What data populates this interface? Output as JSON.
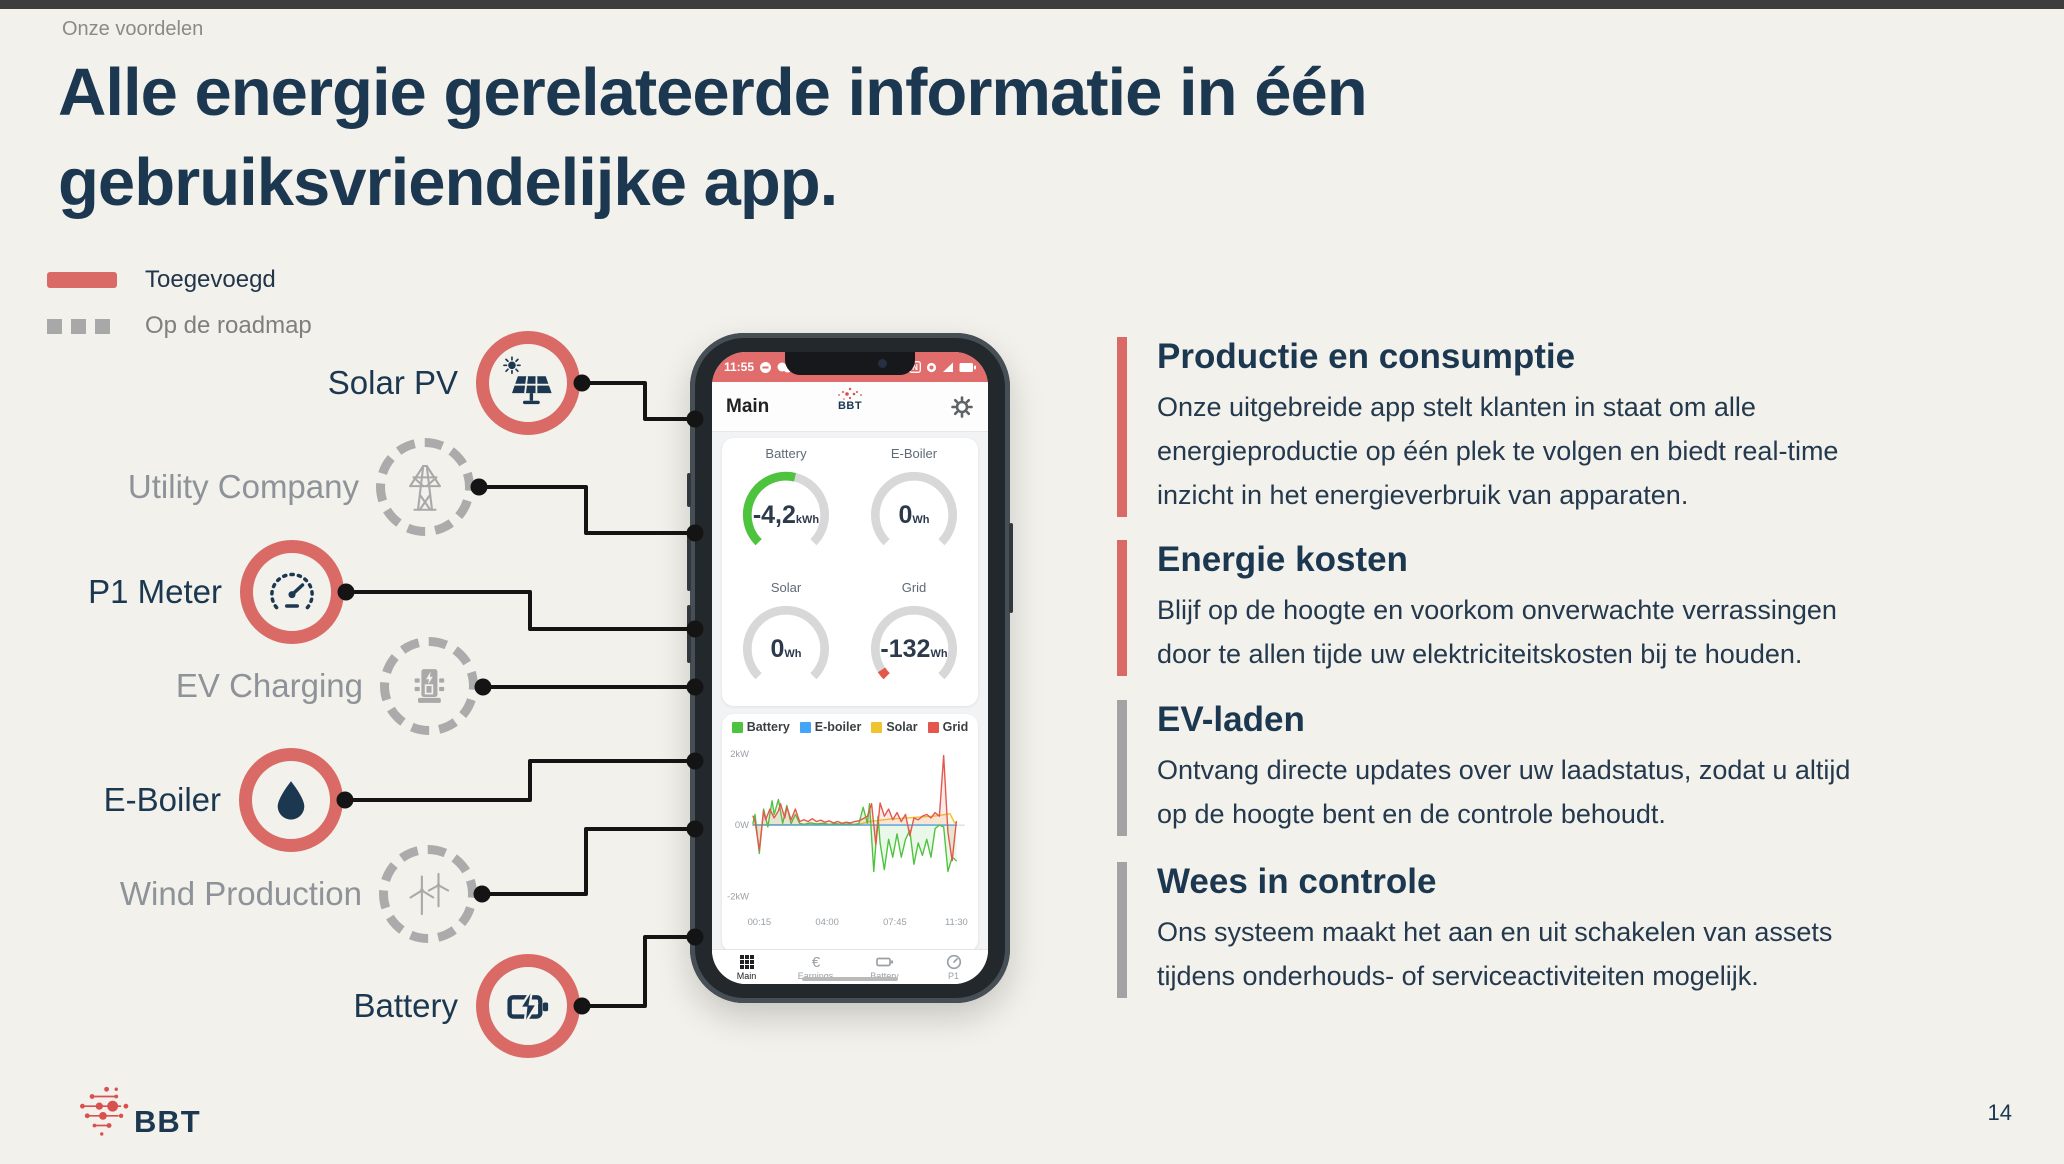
{
  "page": {
    "eyebrow": "Onze voordelen",
    "title_line1": "Alle energie gerelateerde informatie in één",
    "title_line2": "gebruiksvriendelijke app.",
    "page_number": "14"
  },
  "legend": {
    "added_label": "Toegevoegd",
    "roadmap_label": "Op de roadmap",
    "added_color": "#d96a66",
    "roadmap_color": "#a8a8a8"
  },
  "assets": [
    {
      "label": "Solar PV",
      "status": "added",
      "icon": "solar-panel-icon"
    },
    {
      "label": "Utility Company",
      "status": "roadmap",
      "icon": "transmission-tower-icon"
    },
    {
      "label": "P1 Meter",
      "status": "added",
      "icon": "meter-gauge-icon"
    },
    {
      "label": "EV Charging",
      "status": "roadmap",
      "icon": "ev-charger-icon"
    },
    {
      "label": "E-Boiler",
      "status": "added",
      "icon": "water-drop-icon"
    },
    {
      "label": "Wind Production",
      "status": "roadmap",
      "icon": "wind-turbine-icon"
    },
    {
      "label": "Battery",
      "status": "added",
      "icon": "battery-bolt-icon"
    }
  ],
  "phone": {
    "status": {
      "time": "11:55"
    },
    "header": {
      "title": "Main",
      "brand": "BBT"
    },
    "gauges": [
      {
        "label": "Battery",
        "value": "-4,2",
        "unit": "kWh",
        "arc_color": "#4ec43e",
        "arc_pct": 0.55
      },
      {
        "label": "E-Boiler",
        "value": "0",
        "unit": "Wh",
        "arc_color": null,
        "arc_pct": 0
      },
      {
        "label": "Solar",
        "value": "0",
        "unit": "Wh",
        "arc_color": null,
        "arc_pct": 0
      },
      {
        "label": "Grid",
        "value": "-132",
        "unit": "Wh",
        "arc_color": "#e4574d",
        "arc_pct": 0.045
      }
    ],
    "nav": [
      {
        "label": "Main",
        "icon": "grid-icon",
        "active": true
      },
      {
        "label": "Earnings",
        "icon": "euro-icon",
        "active": false
      },
      {
        "label": "Battery",
        "icon": "battery-icon",
        "active": false
      },
      {
        "label": "P1",
        "icon": "meter-icon",
        "active": false
      }
    ]
  },
  "chart_data": {
    "type": "line",
    "title": "",
    "xlabel": "",
    "ylabel": "",
    "ylim": [
      -2,
      2
    ],
    "grid": "zero-line-only",
    "legend_position": "top",
    "y_ticks": [
      {
        "label": "2kW",
        "kw": 2
      },
      {
        "label": "0W",
        "kw": 0
      },
      {
        "label": "-2kW",
        "kw": -2
      }
    ],
    "x_ticks": [
      {
        "label": "00:15",
        "t": 3
      },
      {
        "label": "04:00",
        "t": 35
      },
      {
        "label": "07:45",
        "t": 67
      },
      {
        "label": "11:30",
        "t": 96
      }
    ],
    "series": [
      {
        "name": "Battery",
        "color": "#4ec43e",
        "points": [
          [
            0,
            0.05
          ],
          [
            1,
            0.3
          ],
          [
            3,
            -0.8
          ],
          [
            5,
            0.45
          ],
          [
            7,
            -0.05
          ],
          [
            9,
            0.68
          ],
          [
            10,
            0.3
          ],
          [
            12,
            0.72
          ],
          [
            14,
            0.05
          ],
          [
            16,
            0.55
          ],
          [
            18,
            0.04
          ],
          [
            20,
            0.3
          ],
          [
            22,
            0.05
          ],
          [
            24,
            0.02
          ],
          [
            27,
            0.06
          ],
          [
            30,
            0.03
          ],
          [
            33,
            0.05
          ],
          [
            36,
            0.02
          ],
          [
            39,
            0.04
          ],
          [
            42,
            0.02
          ],
          [
            45,
            0.03
          ],
          [
            48,
            0.02
          ],
          [
            50,
            0.04
          ],
          [
            52,
            0.5
          ],
          [
            54,
            0.05
          ],
          [
            55,
            0.6
          ],
          [
            57,
            -1.3
          ],
          [
            59,
            0.25
          ],
          [
            60,
            -0.5
          ],
          [
            62,
            -1.25
          ],
          [
            64,
            -0.4
          ],
          [
            66,
            -0.9
          ],
          [
            68,
            -0.25
          ],
          [
            70,
            -0.9
          ],
          [
            72,
            -0.4
          ],
          [
            74,
            -0.15
          ],
          [
            76,
            -1.1
          ],
          [
            78,
            -0.5
          ],
          [
            80,
            -0.85
          ],
          [
            82,
            -0.4
          ],
          [
            84,
            -0.9
          ],
          [
            86,
            -0.1
          ],
          [
            88,
            0.0
          ],
          [
            90,
            -0.05
          ],
          [
            92,
            -1.3
          ],
          [
            94,
            -0.9
          ],
          [
            96,
            -1.0
          ]
        ]
      },
      {
        "name": "E-boiler",
        "color": "#42a5f5",
        "points": [
          [
            0,
            0.0
          ],
          [
            96,
            0.0
          ]
        ]
      },
      {
        "name": "Solar",
        "color": "#f0c330",
        "points": [
          [
            0,
            0.01
          ],
          [
            20,
            0.01
          ],
          [
            40,
            0.01
          ],
          [
            50,
            0.02
          ],
          [
            55,
            0.1
          ],
          [
            60,
            0.14
          ],
          [
            65,
            0.17
          ],
          [
            70,
            0.19
          ],
          [
            75,
            0.21
          ],
          [
            80,
            0.23
          ],
          [
            85,
            0.25
          ],
          [
            88,
            0.27
          ],
          [
            91,
            0.3
          ],
          [
            93,
            0.32
          ],
          [
            95,
            0.08
          ],
          [
            96,
            0.02
          ]
        ]
      },
      {
        "name": "Grid",
        "color": "#e4574d",
        "points": [
          [
            0,
            0.25
          ],
          [
            1,
            0.1
          ],
          [
            3,
            -0.7
          ],
          [
            5,
            0.4
          ],
          [
            6,
            0.15
          ],
          [
            8,
            0.45
          ],
          [
            10,
            0.2
          ],
          [
            12,
            0.4
          ],
          [
            13,
            0.6
          ],
          [
            15,
            0.2
          ],
          [
            16,
            0.5
          ],
          [
            18,
            0.15
          ],
          [
            20,
            0.45
          ],
          [
            22,
            0.1
          ],
          [
            24,
            0.15
          ],
          [
            26,
            0.1
          ],
          [
            28,
            0.18
          ],
          [
            30,
            0.1
          ],
          [
            32,
            0.14
          ],
          [
            34,
            0.08
          ],
          [
            36,
            0.12
          ],
          [
            38,
            0.06
          ],
          [
            40,
            0.1
          ],
          [
            42,
            0.05
          ],
          [
            44,
            0.08
          ],
          [
            46,
            0.06
          ],
          [
            48,
            0.1
          ],
          [
            50,
            0.12
          ],
          [
            52,
            0.18
          ],
          [
            54,
            0.25
          ],
          [
            56,
            0.6
          ],
          [
            58,
            -0.55
          ],
          [
            60,
            0.62
          ],
          [
            62,
            0.25
          ],
          [
            64,
            0.45
          ],
          [
            66,
            0.15
          ],
          [
            68,
            0.35
          ],
          [
            70,
            0.1
          ],
          [
            72,
            0.3
          ],
          [
            74,
            -0.3
          ],
          [
            76,
            0.2
          ],
          [
            78,
            0.15
          ],
          [
            80,
            0.25
          ],
          [
            82,
            0.3
          ],
          [
            84,
            0.2
          ],
          [
            86,
            0.35
          ],
          [
            88,
            0.25
          ],
          [
            90,
            1.95
          ],
          [
            92,
            -0.2
          ],
          [
            94,
            -1.0
          ],
          [
            96,
            0.1
          ]
        ]
      }
    ]
  },
  "sections": [
    {
      "status": "added",
      "title": "Productie en consumptie",
      "body": "Onze uitgebreide app stelt klanten in staat om alle\nenergieproductie op één plek te volgen en biedt real-time\ninzicht in het energieverbruik van apparaten."
    },
    {
      "status": "added",
      "title": "Energie kosten",
      "body": "Blijf op de hoogte en voorkom onverwachte verrassingen\ndoor te allen tijde uw elektriciteitskosten bij te houden."
    },
    {
      "status": "roadmap",
      "title": "EV-laden",
      "body": "Ontvang directe updates over uw laadstatus, zodat u altijd\nop de hoogte bent en de controle behoudt."
    },
    {
      "status": "roadmap",
      "title": "Wees in controle",
      "body": "Ons systeem maakt het aan en uit schakelen van assets\ntijdens onderhouds- of serviceactiviteiten mogelijk."
    }
  ],
  "footer": {
    "brand": "BBT"
  }
}
